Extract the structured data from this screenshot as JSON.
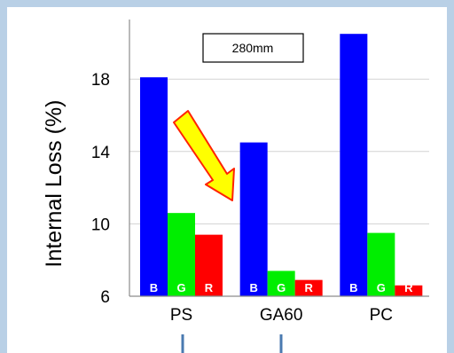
{
  "chart_data": {
    "type": "bar",
    "ylabel": "Internal Loss (%)",
    "ylim": [
      6,
      21
    ],
    "yticks": [
      6,
      10,
      14,
      18
    ],
    "grid": true,
    "annotation_box": "280mm",
    "categories": [
      "PS",
      "GA60",
      "PC"
    ],
    "series": [
      {
        "key": "B",
        "color": "#0000ff",
        "values": [
          18.1,
          14.5,
          20.5
        ]
      },
      {
        "key": "G",
        "color": "#00ee00",
        "values": [
          10.6,
          7.4,
          9.5
        ]
      },
      {
        "key": "R",
        "color": "#ff0000",
        "values": [
          9.4,
          6.9,
          6.6
        ]
      }
    ],
    "arrow_color": "#ffff00",
    "arrow_outline": "#ff2200",
    "connector_color": "#4a7ab0"
  }
}
